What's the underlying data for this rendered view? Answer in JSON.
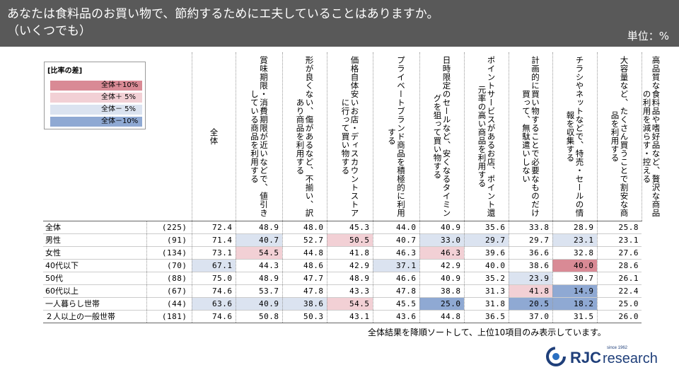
{
  "title": "あなたは食料品のお買い物で、節約するためにエ夫していることはありますか。\n（いくつでも）",
  "unit": "単位：%",
  "legend": {
    "title": "[比率の差]",
    "items": [
      {
        "label": "全体＋10%",
        "color": "#d98a95"
      },
      {
        "label": "全体＋ 5%",
        "color": "#f2d0d5"
      },
      {
        "label": "全体－ 5%",
        "color": "#dbe3f0"
      },
      {
        "label": "全体－10%",
        "color": "#8fa9d3"
      }
    ]
  },
  "chart_data": {
    "type": "table",
    "columns": [
      "全体",
      "賞味期限・消費期限が近いなどで、値引きしている商品を利用する",
      "形が良くない、傷があるなど、不揃い、訳あり商品を利用する",
      "価格自体安いお店・ディスカウントストアに行って買い物する",
      "プライベートブランド商品を積極的に利用する",
      "日時限定のセールなど、安くなるタイミングを狙って買い物する",
      "ポイントサービスがあるお店、ポイント還元率の高い商品を利用する",
      "計画的に買い物することで必要なものだけ買って、無駄遣いしない",
      "チラシやネットなどで、特売・セールの情報を収集する",
      "大容量など、たくさん買うことで割安な商品を利用する",
      "高品質な食料品や嗜好品など、贅沢な商品の利用を減らす・控える"
    ],
    "rows": [
      {
        "label": "全体",
        "n": "(225)",
        "values": [
          "72.4",
          "48.9",
          "48.0",
          "45.3",
          "44.0",
          "40.9",
          "35.6",
          "33.8",
          "28.9",
          "25.8"
        ],
        "shade": [
          0,
          0,
          0,
          0,
          0,
          0,
          0,
          0,
          0,
          0
        ]
      },
      {
        "label": "男性",
        "n": "(91)",
        "values": [
          "71.4",
          "40.7",
          "52.7",
          "50.5",
          "40.7",
          "33.0",
          "29.7",
          "29.7",
          "23.1",
          "23.1"
        ],
        "shade": [
          0,
          -1,
          0,
          1,
          0,
          -1,
          -1,
          0,
          -1,
          0
        ]
      },
      {
        "label": "女性",
        "n": "(134)",
        "values": [
          "73.1",
          "54.5",
          "44.8",
          "41.8",
          "46.3",
          "46.3",
          "39.6",
          "36.6",
          "32.8",
          "27.6"
        ],
        "shade": [
          0,
          1,
          0,
          0,
          0,
          1,
          0,
          0,
          0,
          0
        ]
      },
      {
        "label": "40代以下",
        "n": "(70)",
        "values": [
          "67.1",
          "44.3",
          "48.6",
          "42.9",
          "37.1",
          "42.9",
          "40.0",
          "38.6",
          "40.0",
          "28.6"
        ],
        "shade": [
          -1,
          0,
          0,
          0,
          -1,
          0,
          0,
          0,
          2,
          0
        ]
      },
      {
        "label": "50代",
        "n": "(88)",
        "values": [
          "75.0",
          "48.9",
          "47.7",
          "48.9",
          "46.6",
          "40.9",
          "35.2",
          "23.9",
          "30.7",
          "26.1"
        ],
        "shade": [
          0,
          0,
          0,
          0,
          0,
          0,
          0,
          -1,
          0,
          0
        ]
      },
      {
        "label": "60代以上",
        "n": "(67)",
        "values": [
          "74.6",
          "53.7",
          "47.8",
          "43.3",
          "47.8",
          "38.8",
          "31.3",
          "41.8",
          "14.9",
          "22.4"
        ],
        "shade": [
          0,
          0,
          0,
          0,
          0,
          0,
          0,
          1,
          -2,
          0
        ]
      },
      {
        "label": "一人暮らし世帯",
        "n": "(44)",
        "values": [
          "63.6",
          "40.9",
          "38.6",
          "54.5",
          "45.5",
          "25.0",
          "31.8",
          "20.5",
          "18.2",
          "25.0"
        ],
        "shade": [
          -1,
          -1,
          -1,
          1,
          0,
          -2,
          0,
          -2,
          -2,
          0
        ]
      },
      {
        "label": "２人以上の一般世帯",
        "n": "(181)",
        "values": [
          "74.6",
          "50.8",
          "50.3",
          "43.1",
          "43.6",
          "44.8",
          "36.5",
          "37.0",
          "31.5",
          "26.0"
        ],
        "shade": [
          0,
          0,
          0,
          0,
          0,
          0,
          0,
          0,
          0,
          0
        ]
      }
    ]
  },
  "footnote": "全体結果を降順ソートして、上位10項目のみ表示しています。",
  "logo": {
    "brand": "RJC",
    "word": "research",
    "since": "since 1962"
  },
  "colors": {
    "plus10": "#d98a95",
    "plus5": "#f2d0d5",
    "minus5": "#dbe3f0",
    "minus10": "#8fa9d3"
  }
}
